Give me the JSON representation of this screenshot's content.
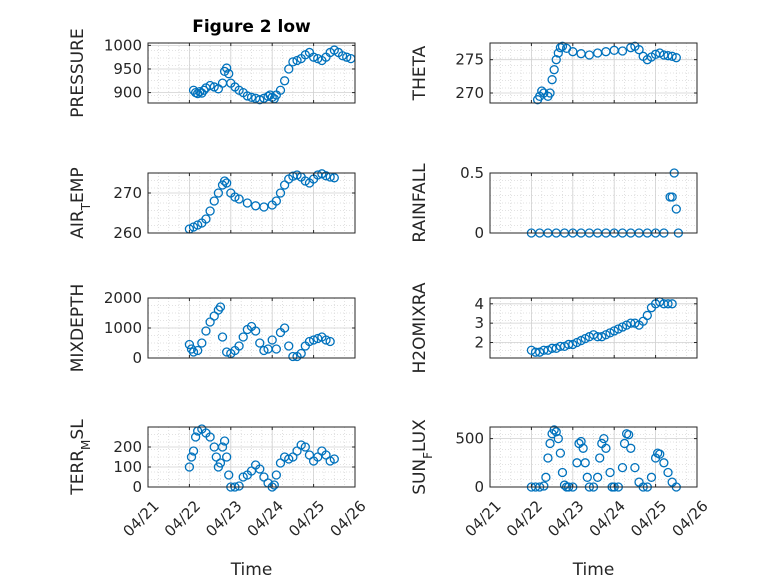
{
  "chart_data": [
    {
      "type": "scatter",
      "title": "Figure 2 low",
      "xlabel": "",
      "ylabel": "PRESSURE",
      "ylim": [
        878,
        1005
      ],
      "yticks": [
        900,
        950,
        1000
      ],
      "points": [
        [
          1.1,
          905
        ],
        [
          1.15,
          900
        ],
        [
          1.2,
          898
        ],
        [
          1.25,
          902
        ],
        [
          1.3,
          899
        ],
        [
          1.35,
          905
        ],
        [
          1.4,
          910
        ],
        [
          1.5,
          915
        ],
        [
          1.6,
          912
        ],
        [
          1.7,
          908
        ],
        [
          1.8,
          920
        ],
        [
          1.85,
          945
        ],
        [
          1.9,
          952
        ],
        [
          1.95,
          940
        ],
        [
          2.0,
          920
        ],
        [
          2.1,
          912
        ],
        [
          2.2,
          905
        ],
        [
          2.3,
          900
        ],
        [
          2.4,
          893
        ],
        [
          2.5,
          890
        ],
        [
          2.6,
          888
        ],
        [
          2.7,
          885
        ],
        [
          2.8,
          888
        ],
        [
          2.9,
          892
        ],
        [
          2.95,
          895
        ],
        [
          3.0,
          890
        ],
        [
          3.05,
          887
        ],
        [
          3.1,
          895
        ],
        [
          3.2,
          905
        ],
        [
          3.3,
          925
        ],
        [
          3.4,
          950
        ],
        [
          3.5,
          965
        ],
        [
          3.6,
          968
        ],
        [
          3.7,
          972
        ],
        [
          3.8,
          980
        ],
        [
          3.9,
          985
        ],
        [
          4.0,
          975
        ],
        [
          4.1,
          972
        ],
        [
          4.2,
          968
        ],
        [
          4.3,
          975
        ],
        [
          4.4,
          985
        ],
        [
          4.5,
          990
        ],
        [
          4.6,
          985
        ],
        [
          4.7,
          978
        ],
        [
          4.8,
          975
        ],
        [
          4.9,
          972
        ]
      ]
    },
    {
      "type": "scatter",
      "xlabel": "",
      "ylabel": "THETA",
      "ylim": [
        268.5,
        277.5
      ],
      "yticks": [
        270,
        275
      ],
      "points": [
        [
          1.15,
          269.0
        ],
        [
          1.2,
          269.5
        ],
        [
          1.25,
          270.3
        ],
        [
          1.3,
          270.0
        ],
        [
          1.4,
          269.5
        ],
        [
          1.45,
          270.0
        ],
        [
          1.5,
          272.0
        ],
        [
          1.55,
          273.5
        ],
        [
          1.6,
          275.0
        ],
        [
          1.65,
          276.0
        ],
        [
          1.7,
          276.8
        ],
        [
          1.75,
          277.0
        ],
        [
          1.85,
          276.7
        ],
        [
          2.0,
          276.2
        ],
        [
          2.2,
          275.9
        ],
        [
          2.4,
          275.7
        ],
        [
          2.6,
          276.0
        ],
        [
          2.8,
          276.2
        ],
        [
          3.0,
          276.4
        ],
        [
          3.2,
          276.3
        ],
        [
          3.4,
          276.8
        ],
        [
          3.5,
          277.0
        ],
        [
          3.6,
          276.5
        ],
        [
          3.7,
          275.5
        ],
        [
          3.8,
          275.0
        ],
        [
          3.9,
          275.4
        ],
        [
          4.0,
          275.8
        ],
        [
          4.1,
          276.0
        ],
        [
          4.2,
          275.7
        ],
        [
          4.3,
          275.6
        ],
        [
          4.4,
          275.5
        ],
        [
          4.5,
          275.3
        ]
      ]
    },
    {
      "type": "scatter",
      "xlabel": "",
      "ylabel": "AIR_TEMP",
      "ylim": [
        260,
        275
      ],
      "yticks": [
        260,
        270
      ],
      "points": [
        [
          1.0,
          261.0
        ],
        [
          1.1,
          261.5
        ],
        [
          1.2,
          262.0
        ],
        [
          1.3,
          262.5
        ],
        [
          1.4,
          263.5
        ],
        [
          1.5,
          265.5
        ],
        [
          1.6,
          268.0
        ],
        [
          1.7,
          270.0
        ],
        [
          1.8,
          272.0
        ],
        [
          1.85,
          273.0
        ],
        [
          1.9,
          272.5
        ],
        [
          2.0,
          270.0
        ],
        [
          2.1,
          269.0
        ],
        [
          2.2,
          268.5
        ],
        [
          2.4,
          267.5
        ],
        [
          2.6,
          266.8
        ],
        [
          2.8,
          266.5
        ],
        [
          3.0,
          267.0
        ],
        [
          3.1,
          268.0
        ],
        [
          3.2,
          270.0
        ],
        [
          3.3,
          272.0
        ],
        [
          3.4,
          273.5
        ],
        [
          3.5,
          274.2
        ],
        [
          3.6,
          274.5
        ],
        [
          3.7,
          274.0
        ],
        [
          3.8,
          273.0
        ],
        [
          3.9,
          272.5
        ],
        [
          4.0,
          273.5
        ],
        [
          4.1,
          274.5
        ],
        [
          4.2,
          274.8
        ],
        [
          4.3,
          274.3
        ],
        [
          4.4,
          274.0
        ],
        [
          4.5,
          273.8
        ]
      ]
    },
    {
      "type": "scatter",
      "xlabel": "",
      "ylabel": "RAINFALL",
      "ylim": [
        0,
        0.5
      ],
      "yticks": [
        0,
        0.5
      ],
      "points": [
        [
          1.0,
          0
        ],
        [
          1.2,
          0
        ],
        [
          1.4,
          0
        ],
        [
          1.6,
          0
        ],
        [
          1.8,
          0
        ],
        [
          2.0,
          0
        ],
        [
          2.2,
          0
        ],
        [
          2.4,
          0
        ],
        [
          2.6,
          0
        ],
        [
          2.8,
          0
        ],
        [
          3.0,
          0
        ],
        [
          3.2,
          0
        ],
        [
          3.4,
          0
        ],
        [
          3.6,
          0
        ],
        [
          3.8,
          0
        ],
        [
          4.0,
          0
        ],
        [
          4.2,
          0
        ],
        [
          4.35,
          0.3
        ],
        [
          4.4,
          0.3
        ],
        [
          4.45,
          0.5
        ],
        [
          4.5,
          0.2
        ],
        [
          4.55,
          0.0
        ]
      ]
    },
    {
      "type": "scatter",
      "xlabel": "",
      "ylabel": "MIXDEPTH",
      "ylim": [
        0,
        2000
      ],
      "yticks": [
        0,
        1000,
        2000
      ],
      "points": [
        [
          1.0,
          450
        ],
        [
          1.05,
          300
        ],
        [
          1.1,
          200
        ],
        [
          1.2,
          250
        ],
        [
          1.3,
          500
        ],
        [
          1.4,
          900
        ],
        [
          1.5,
          1200
        ],
        [
          1.6,
          1400
        ],
        [
          1.7,
          1600
        ],
        [
          1.75,
          1700
        ],
        [
          1.8,
          700
        ],
        [
          1.9,
          200
        ],
        [
          2.0,
          150
        ],
        [
          2.1,
          250
        ],
        [
          2.2,
          400
        ],
        [
          2.3,
          700
        ],
        [
          2.4,
          950
        ],
        [
          2.5,
          1050
        ],
        [
          2.6,
          900
        ],
        [
          2.7,
          500
        ],
        [
          2.8,
          250
        ],
        [
          2.9,
          300
        ],
        [
          3.0,
          600
        ],
        [
          3.1,
          300
        ],
        [
          3.2,
          850
        ],
        [
          3.3,
          1000
        ],
        [
          3.4,
          400
        ],
        [
          3.5,
          50
        ],
        [
          3.6,
          50
        ],
        [
          3.7,
          150
        ],
        [
          3.8,
          400
        ],
        [
          3.9,
          550
        ],
        [
          4.0,
          600
        ],
        [
          4.1,
          650
        ],
        [
          4.2,
          700
        ],
        [
          4.3,
          600
        ],
        [
          4.4,
          550
        ]
      ]
    },
    {
      "type": "scatter",
      "xlabel": "",
      "ylabel": "H2OMIXRA",
      "ylim": [
        1.2,
        4.3
      ],
      "yticks": [
        2,
        3,
        4
      ],
      "points": [
        [
          1.0,
          1.6
        ],
        [
          1.1,
          1.5
        ],
        [
          1.2,
          1.5
        ],
        [
          1.3,
          1.6
        ],
        [
          1.4,
          1.6
        ],
        [
          1.5,
          1.7
        ],
        [
          1.6,
          1.7
        ],
        [
          1.7,
          1.8
        ],
        [
          1.8,
          1.8
        ],
        [
          1.9,
          1.9
        ],
        [
          2.0,
          1.9
        ],
        [
          2.1,
          2.0
        ],
        [
          2.2,
          2.1
        ],
        [
          2.3,
          2.2
        ],
        [
          2.4,
          2.3
        ],
        [
          2.5,
          2.4
        ],
        [
          2.6,
          2.3
        ],
        [
          2.7,
          2.3
        ],
        [
          2.8,
          2.4
        ],
        [
          2.9,
          2.5
        ],
        [
          3.0,
          2.6
        ],
        [
          3.1,
          2.7
        ],
        [
          3.2,
          2.8
        ],
        [
          3.3,
          2.9
        ],
        [
          3.4,
          3.0
        ],
        [
          3.5,
          3.0
        ],
        [
          3.6,
          2.9
        ],
        [
          3.7,
          3.1
        ],
        [
          3.8,
          3.4
        ],
        [
          3.9,
          3.8
        ],
        [
          4.0,
          4.0
        ],
        [
          4.1,
          4.1
        ],
        [
          4.2,
          4.0
        ],
        [
          4.3,
          4.0
        ],
        [
          4.4,
          4.0
        ]
      ]
    },
    {
      "type": "scatter",
      "xlabel": "Time",
      "ylabel": "TERR_MSL",
      "ylim": [
        0,
        300
      ],
      "yticks": [
        0,
        100,
        200
      ],
      "xticklabels": [
        "04/21",
        "04/22",
        "04/23",
        "04/24",
        "04/25",
        "04/26"
      ],
      "points": [
        [
          1.0,
          100
        ],
        [
          1.05,
          150
        ],
        [
          1.1,
          180
        ],
        [
          1.15,
          250
        ],
        [
          1.2,
          280
        ],
        [
          1.3,
          290
        ],
        [
          1.4,
          270
        ],
        [
          1.5,
          250
        ],
        [
          1.6,
          200
        ],
        [
          1.65,
          150
        ],
        [
          1.7,
          100
        ],
        [
          1.75,
          120
        ],
        [
          1.8,
          200
        ],
        [
          1.85,
          230
        ],
        [
          1.9,
          150
        ],
        [
          1.95,
          60
        ],
        [
          2.0,
          0
        ],
        [
          2.1,
          0
        ],
        [
          2.2,
          5
        ],
        [
          2.3,
          50
        ],
        [
          2.4,
          60
        ],
        [
          2.5,
          80
        ],
        [
          2.6,
          110
        ],
        [
          2.7,
          90
        ],
        [
          2.8,
          50
        ],
        [
          2.9,
          20
        ],
        [
          3.0,
          0
        ],
        [
          3.05,
          10
        ],
        [
          3.1,
          60
        ],
        [
          3.2,
          120
        ],
        [
          3.3,
          150
        ],
        [
          3.4,
          140
        ],
        [
          3.5,
          150
        ],
        [
          3.6,
          180
        ],
        [
          3.7,
          210
        ],
        [
          3.8,
          200
        ],
        [
          3.9,
          160
        ],
        [
          4.0,
          130
        ],
        [
          4.1,
          150
        ],
        [
          4.2,
          180
        ],
        [
          4.3,
          160
        ],
        [
          4.4,
          130
        ],
        [
          4.5,
          140
        ]
      ]
    },
    {
      "type": "scatter",
      "xlabel": "Time",
      "ylabel": "SUN_FLUX",
      "ylim": [
        0,
        620
      ],
      "yticks": [
        0,
        500
      ],
      "xticklabels": [
        "04/21",
        "04/22",
        "04/23",
        "04/24",
        "04/25",
        "04/26"
      ],
      "points": [
        [
          1.0,
          0
        ],
        [
          1.1,
          0
        ],
        [
          1.2,
          0
        ],
        [
          1.3,
          10
        ],
        [
          1.35,
          100
        ],
        [
          1.4,
          300
        ],
        [
          1.45,
          450
        ],
        [
          1.5,
          550
        ],
        [
          1.55,
          590
        ],
        [
          1.6,
          570
        ],
        [
          1.65,
          500
        ],
        [
          1.7,
          350
        ],
        [
          1.75,
          150
        ],
        [
          1.8,
          20
        ],
        [
          1.85,
          0
        ],
        [
          1.9,
          0
        ],
        [
          2.0,
          0
        ],
        [
          2.1,
          250
        ],
        [
          2.15,
          450
        ],
        [
          2.2,
          470
        ],
        [
          2.25,
          400
        ],
        [
          2.3,
          250
        ],
        [
          2.35,
          100
        ],
        [
          2.4,
          0
        ],
        [
          2.5,
          0
        ],
        [
          2.6,
          100
        ],
        [
          2.65,
          300
        ],
        [
          2.7,
          450
        ],
        [
          2.75,
          500
        ],
        [
          2.8,
          400
        ],
        [
          2.9,
          150
        ],
        [
          2.95,
          0
        ],
        [
          3.0,
          0
        ],
        [
          3.1,
          0
        ],
        [
          3.2,
          200
        ],
        [
          3.25,
          450
        ],
        [
          3.3,
          550
        ],
        [
          3.35,
          540
        ],
        [
          3.4,
          400
        ],
        [
          3.5,
          200
        ],
        [
          3.6,
          50
        ],
        [
          3.7,
          0
        ],
        [
          3.8,
          0
        ],
        [
          3.9,
          100
        ],
        [
          4.0,
          300
        ],
        [
          4.05,
          350
        ],
        [
          4.1,
          340
        ],
        [
          4.2,
          250
        ],
        [
          4.3,
          150
        ],
        [
          4.4,
          50
        ],
        [
          4.5,
          0
        ]
      ]
    }
  ]
}
